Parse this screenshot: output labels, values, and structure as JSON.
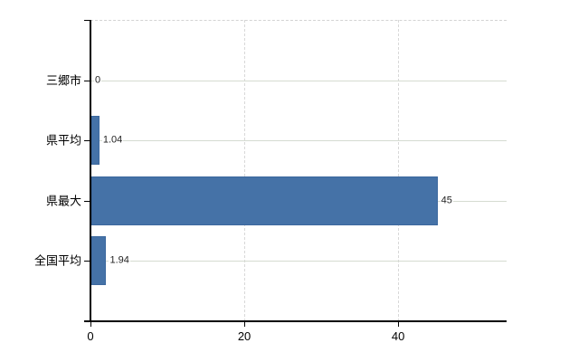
{
  "chart_data": {
    "type": "bar",
    "orientation": "horizontal",
    "title": "",
    "xlabel": "",
    "ylabel": "",
    "categories": [
      "三郷市",
      "県平均",
      "県最大",
      "全国平均"
    ],
    "values": [
      0,
      1.04,
      45,
      1.94
    ],
    "value_labels": [
      "0",
      "1.04",
      "45",
      "1.94"
    ],
    "xticks": [
      0,
      20,
      40
    ],
    "xtick_labels": [
      "0",
      "20",
      "40"
    ],
    "xlim": [
      0,
      54.1
    ],
    "grid": true,
    "legend": false,
    "bar_color": "#4572a7",
    "bar_border_color": "#3c689e",
    "hgrid_color": "#d5dbd1",
    "vgrid_color": "#d8d8d8",
    "axis_color": "#000000"
  }
}
